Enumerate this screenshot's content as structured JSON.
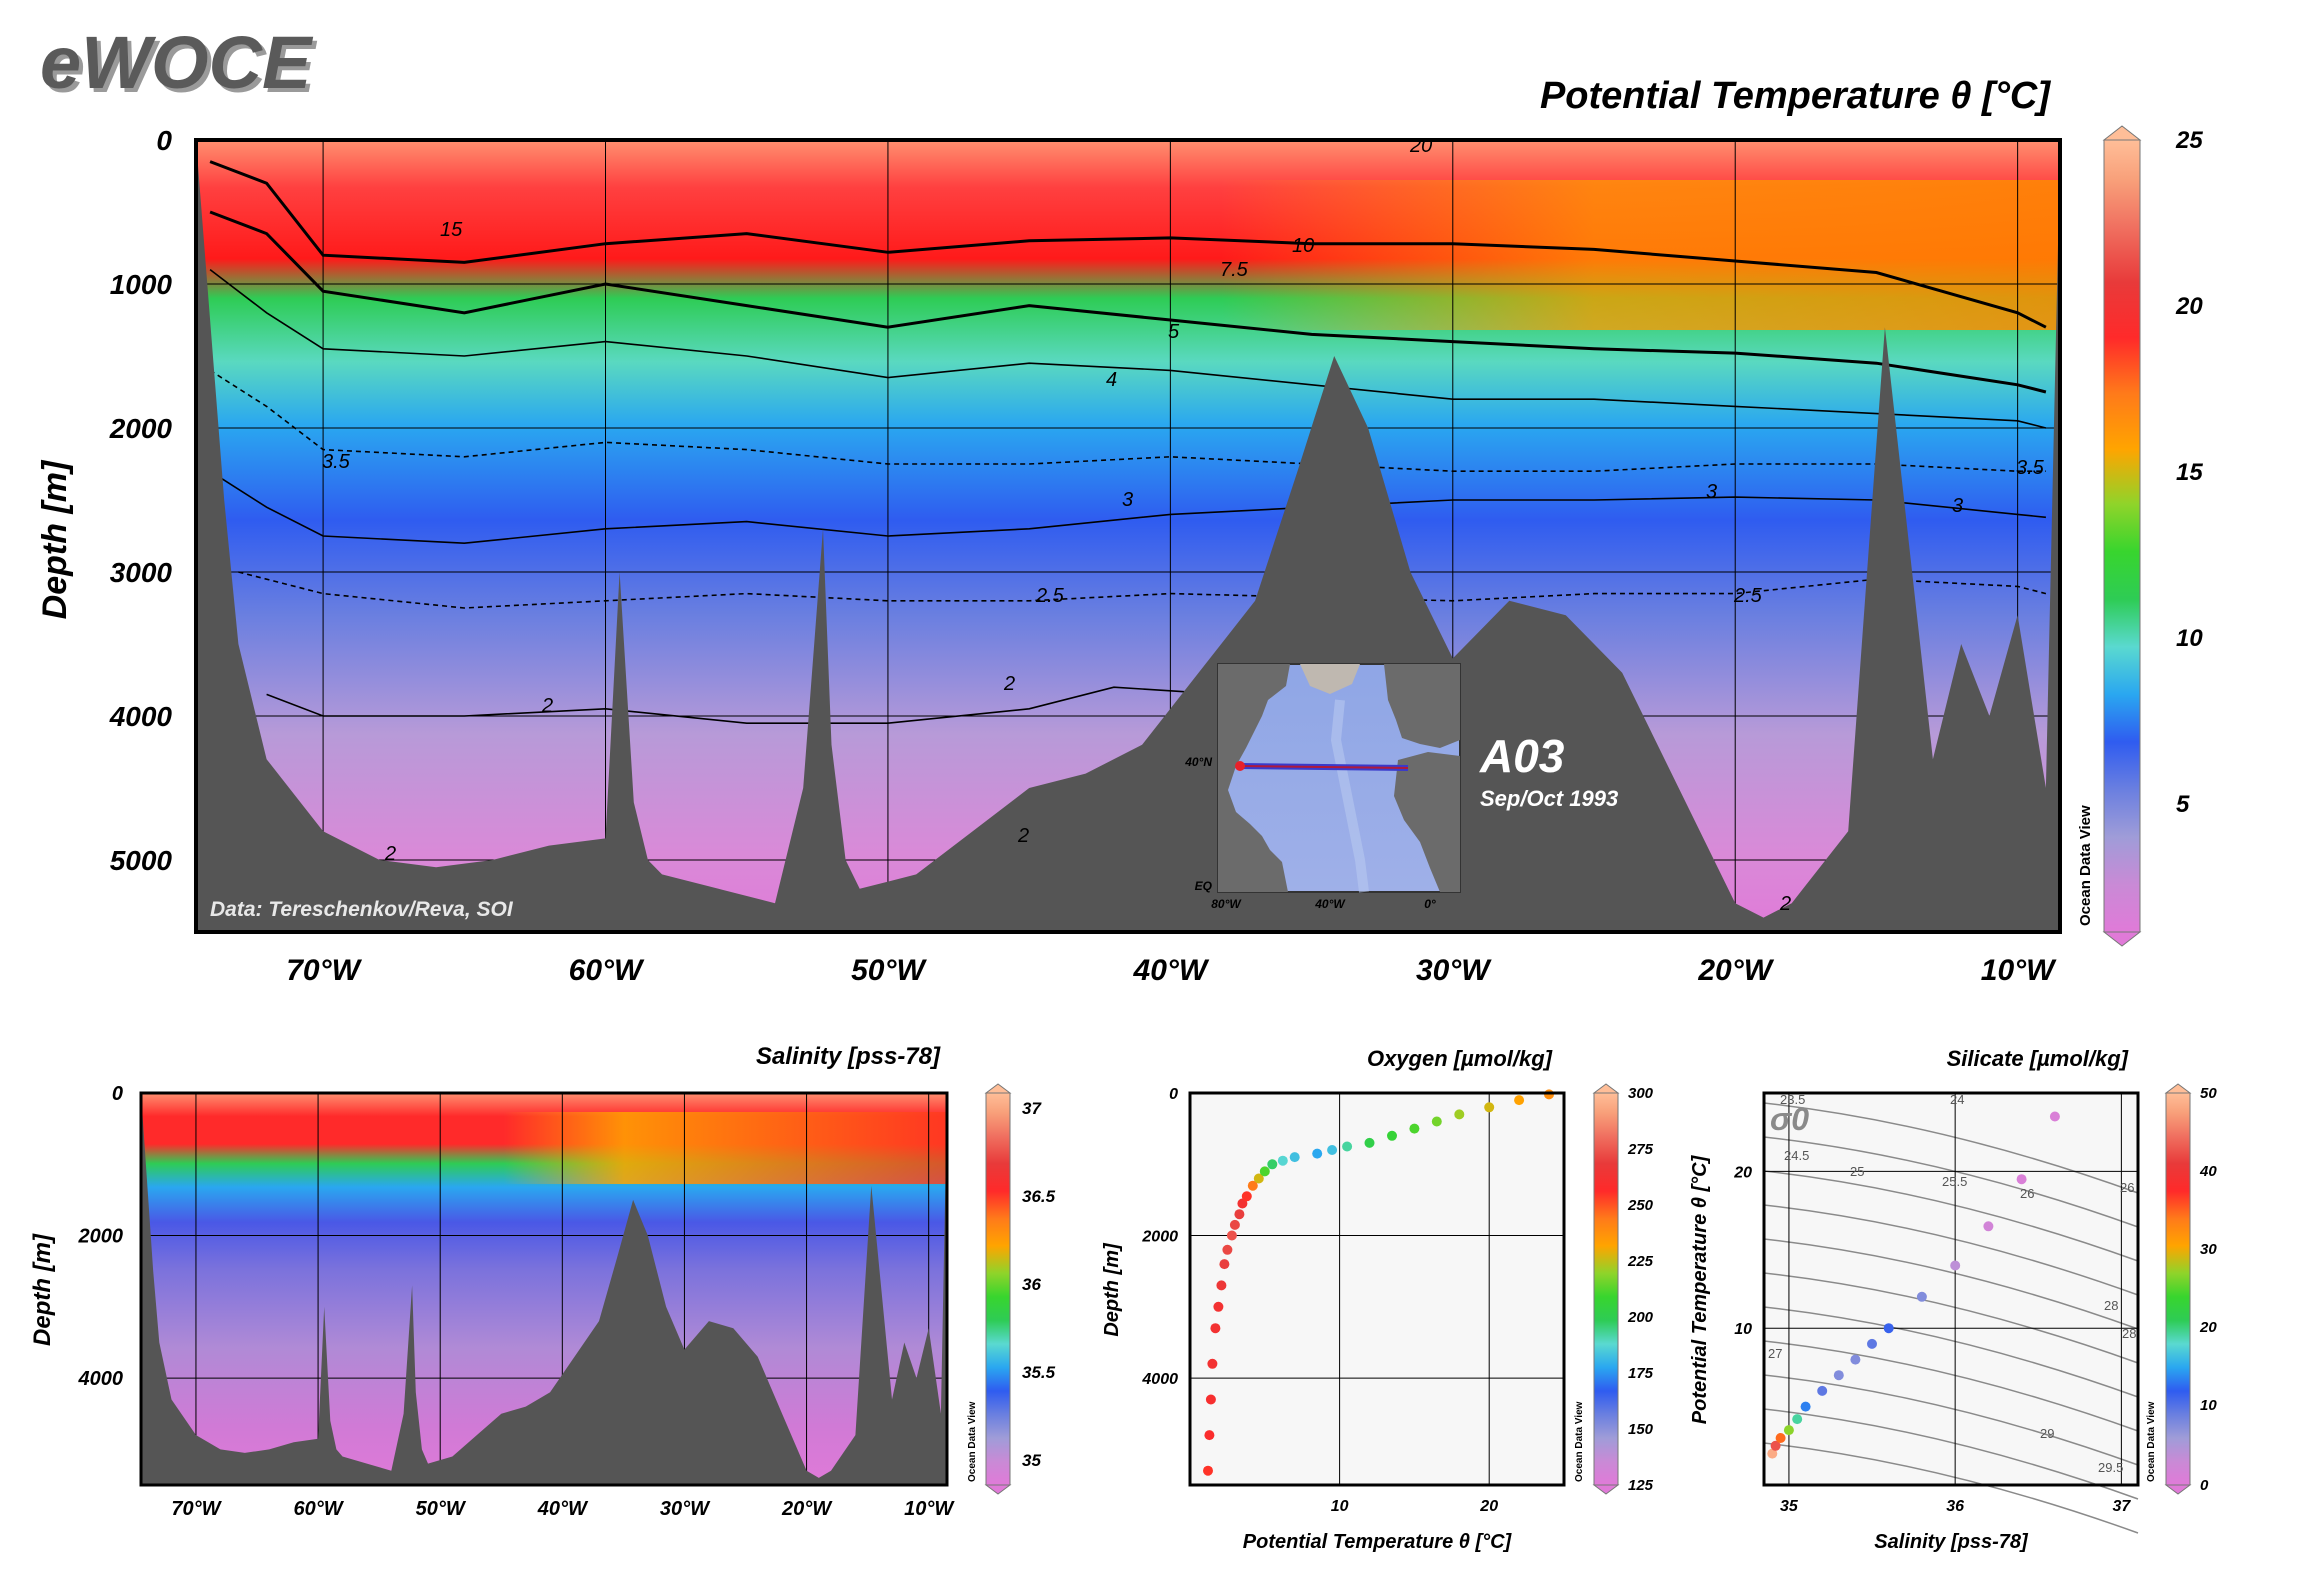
{
  "brand": "eWOCE",
  "colors": {
    "land": "#555555",
    "frame": "#000000",
    "scatter_bg": "#f7f7f7",
    "palette": [
      "#e07ad8",
      "#c98ad6",
      "#9f9cd8",
      "#6a7fe0",
      "#2f5cf0",
      "#2aa7f0",
      "#5ad9d0",
      "#2ecc55",
      "#38d52e",
      "#8fd42a",
      "#ffa400",
      "#ff7a1a",
      "#ff2a2a",
      "#e83a3a",
      "#f07060",
      "#f8a07a",
      "#ffbe98"
    ]
  },
  "main_section": {
    "title": "Potential Temperature θ [°C]",
    "ylabel": "Depth [m]",
    "credit": "Data: Tereschenkov/Reva, SOI",
    "watermark": "Ocean Data View",
    "colorbar_ticks": [
      "25",
      "20",
      "15",
      "10",
      "5"
    ],
    "contour_labels": [
      "20",
      "15",
      "10",
      "7.5",
      "5",
      "4",
      "3.5",
      "3",
      "3",
      "3.5",
      "3",
      "2.5",
      "2.5",
      "2",
      "2",
      "2",
      "2",
      "2"
    ]
  },
  "inset_map": {
    "section_name": "A03",
    "date": "Sep/Oct 1993",
    "lat_labels": [
      "40°N",
      "EQ"
    ],
    "lon_labels": [
      "80°W",
      "40°W",
      "0°"
    ]
  },
  "salinity_panel": {
    "title": "Salinity [pss-78]",
    "ylabel": "Depth [m]",
    "watermark": "Ocean Data View",
    "colorbar_ticks": [
      "37",
      "36.5",
      "36",
      "35.5",
      "35"
    ]
  },
  "oxygen_panel": {
    "title": "Oxygen [µmol/kg]",
    "watermark": "Ocean Data View",
    "colorbar_ticks": [
      "300",
      "275",
      "250",
      "225",
      "200",
      "175",
      "150",
      "125"
    ]
  },
  "silicate_panel": {
    "title": "Silicate [µmol/kg]",
    "watermark": "Ocean Data View",
    "colorbar_ticks": [
      "50",
      "40",
      "30",
      "20",
      "10",
      "0"
    ],
    "density_label": "σ0",
    "density_contours": [
      "23.5",
      "24",
      "24.5",
      "25",
      "25.5",
      "26",
      "26",
      "27",
      "28",
      "28",
      "29",
      "29.5"
    ]
  },
  "chart_data": [
    {
      "type": "heatmap",
      "title": "Potential Temperature θ [°C]",
      "xlabel": "",
      "ylabel": "Depth [m]",
      "x_ticks": [
        "70°W",
        "60°W",
        "50°W",
        "40°W",
        "30°W",
        "20°W",
        "10°W"
      ],
      "y_ticks": [
        "0",
        "1000",
        "2000",
        "3000",
        "4000",
        "5000"
      ],
      "xlim": [
        -74.5,
        -8.5
      ],
      "ylim": [
        5500,
        0
      ],
      "colorbar_range": [
        0,
        25
      ],
      "isotherms": [
        {
          "value": 10,
          "lon": [
            -74,
            -72,
            -70,
            -65,
            -60,
            -55,
            -50,
            -45,
            -40,
            -35,
            -30,
            -25,
            -20,
            -15,
            -10,
            -9
          ],
          "depth": [
            150,
            300,
            800,
            850,
            720,
            650,
            780,
            700,
            680,
            720,
            720,
            760,
            840,
            920,
            1200,
            1300
          ]
        },
        {
          "value": 5,
          "lon": [
            -74,
            -72,
            -70,
            -65,
            -60,
            -55,
            -50,
            -45,
            -40,
            -35,
            -30,
            -25,
            -20,
            -15,
            -10,
            -9
          ],
          "depth": [
            500,
            650,
            1050,
            1200,
            1000,
            1150,
            1300,
            1150,
            1250,
            1350,
            1400,
            1450,
            1480,
            1550,
            1700,
            1750
          ]
        },
        {
          "value": 4,
          "lon": [
            -74,
            -72,
            -70,
            -65,
            -60,
            -55,
            -50,
            -45,
            -40,
            -35,
            -30,
            -25,
            -20,
            -15,
            -10,
            -9
          ],
          "depth": [
            900,
            1200,
            1450,
            1500,
            1400,
            1500,
            1650,
            1550,
            1600,
            1700,
            1800,
            1800,
            1850,
            1900,
            1950,
            2000
          ]
        },
        {
          "value": 3.5,
          "lon": [
            -74,
            -72,
            -70,
            -65,
            -60,
            -55,
            -50,
            -45,
            -40,
            -35,
            -30,
            -25,
            -20,
            -15,
            -10,
            -9
          ],
          "depth": [
            1600,
            1850,
            2150,
            2200,
            2100,
            2150,
            2250,
            2250,
            2200,
            2250,
            2300,
            2300,
            2250,
            2250,
            2300,
            2300
          ]
        },
        {
          "value": 3,
          "lon": [
            -74,
            -72,
            -70,
            -65,
            -60,
            -55,
            -50,
            -45,
            -40,
            -35,
            -30,
            -25,
            -20,
            -15,
            -10,
            -9
          ],
          "depth": [
            2300,
            2550,
            2750,
            2800,
            2700,
            2650,
            2750,
            2700,
            2600,
            2550,
            2500,
            2500,
            2480,
            2500,
            2600,
            2620
          ]
        },
        {
          "value": 2.5,
          "lon": [
            -73,
            -70,
            -65,
            -60,
            -55,
            -50,
            -45,
            -40,
            -30,
            -25,
            -20,
            -15,
            -10,
            -9
          ],
          "depth": [
            3000,
            3150,
            3250,
            3200,
            3150,
            3200,
            3200,
            3150,
            3200,
            3150,
            3150,
            3050,
            3100,
            3150
          ]
        },
        {
          "value": 2,
          "lon": [
            -72,
            -70,
            -65,
            -60,
            -55,
            -50,
            -45,
            -42,
            -38
          ],
          "depth": [
            3850,
            4000,
            4000,
            3950,
            4050,
            4050,
            3950,
            3800,
            3850
          ]
        }
      ],
      "bathymetry": {
        "lon": [
          -74.5,
          -73.5,
          -73,
          -72,
          -70,
          -68,
          -66,
          -64,
          -62,
          -60,
          -59.5,
          -59,
          -58.5,
          -58,
          -56,
          -54,
          -53,
          -52.3,
          -52,
          -51.5,
          -51,
          -49,
          -47,
          -45,
          -43,
          -41,
          -39,
          -37,
          -35.5,
          -34.2,
          -33,
          -31.5,
          -30,
          -28,
          -26,
          -24,
          -22,
          -20,
          -19,
          -18,
          -16,
          -14.7,
          -13,
          -12,
          -11,
          -10,
          -9,
          -8.5
        ],
        "depth": [
          0,
          2500,
          3500,
          4300,
          4800,
          5000,
          5050,
          5000,
          4900,
          4850,
          3000,
          4600,
          5000,
          5100,
          5200,
          5300,
          4500,
          2700,
          4200,
          5000,
          5200,
          5100,
          4800,
          4500,
          4400,
          4200,
          3700,
          3200,
          2300,
          1500,
          2000,
          3000,
          3600,
          3200,
          3300,
          3700,
          4500,
          5300,
          5400,
          5300,
          4800,
          1300,
          4300,
          3500,
          4000,
          3300,
          4500,
          100
        ]
      }
    },
    {
      "type": "heatmap",
      "title": "Salinity [pss-78]",
      "xlabel": "",
      "ylabel": "Depth [m]",
      "x_ticks": [
        "70°W",
        "60°W",
        "50°W",
        "40°W",
        "30°W",
        "20°W",
        "10°W"
      ],
      "y_ticks": [
        "0",
        "2000",
        "4000"
      ],
      "xlim": [
        -74.5,
        -8.5
      ],
      "ylim": [
        5500,
        0
      ],
      "colorbar_range": [
        34.9,
        37
      ]
    },
    {
      "type": "scatter",
      "title": "Oxygen [µmol/kg]",
      "xlabel": "Potential Temperature θ [°C]",
      "ylabel": "Depth [m]",
      "x_ticks": [
        "10",
        "20"
      ],
      "y_ticks": [
        "0",
        "2000",
        "4000"
      ],
      "xlim": [
        0,
        25
      ],
      "ylim": [
        5500,
        0
      ],
      "color_by": "Oxygen [µmol/kg]",
      "colorbar_range": [
        125,
        300
      ],
      "series": [
        {
          "x": [
            1.2,
            1.3,
            1.4,
            1.5,
            1.7,
            1.9,
            2.1,
            2.3,
            2.5,
            2.8,
            3.0,
            3.3,
            3.5,
            3.8,
            4.2,
            4.6,
            5.0,
            5.5,
            6.2,
            7.0,
            8.5,
            9.5,
            10.5,
            12,
            13.5,
            15,
            16.5,
            18,
            20,
            22,
            24
          ],
          "y": [
            5300,
            4800,
            4300,
            3800,
            3300,
            3000,
            2700,
            2400,
            2200,
            2000,
            1850,
            1700,
            1550,
            1450,
            1300,
            1200,
            1100,
            1000,
            950,
            900,
            850,
            800,
            750,
            700,
            600,
            500,
            400,
            300,
            200,
            100,
            20
          ],
          "oxygen": [
            255,
            258,
            260,
            262,
            262,
            262,
            265,
            268,
            270,
            272,
            270,
            268,
            262,
            255,
            245,
            230,
            215,
            200,
            190,
            185,
            180,
            185,
            195,
            205,
            210,
            215,
            220,
            225,
            230,
            235,
            240
          ]
        }
      ]
    },
    {
      "type": "scatter",
      "title": "Silicate [µmol/kg]",
      "xlabel": "Salinity [pss-78]",
      "ylabel": "Potential Temperature θ [°C]",
      "x_ticks": [
        "35",
        "36",
        "37"
      ],
      "y_ticks": [
        "10",
        "20"
      ],
      "xlim": [
        34.85,
        37.1
      ],
      "ylim": [
        0,
        25
      ],
      "color_by": "Silicate [µmol/kg]",
      "colorbar_range": [
        0,
        50
      ],
      "series": [
        {
          "x": [
            34.9,
            34.92,
            34.95,
            35.0,
            35.05,
            35.1,
            35.2,
            35.3,
            35.4,
            35.5,
            35.6,
            35.8,
            36.0,
            36.2,
            36.4,
            36.6
          ],
          "y": [
            2.0,
            2.5,
            3.0,
            3.5,
            4.2,
            5.0,
            6.0,
            7.0,
            8.0,
            9.0,
            10.0,
            12.0,
            14.0,
            16.5,
            19.5,
            23.5
          ],
          "silicate": [
            48,
            42,
            35,
            28,
            20,
            14,
            10,
            8,
            8,
            10,
            12,
            8,
            4,
            2,
            1,
            1
          ]
        }
      ]
    }
  ]
}
